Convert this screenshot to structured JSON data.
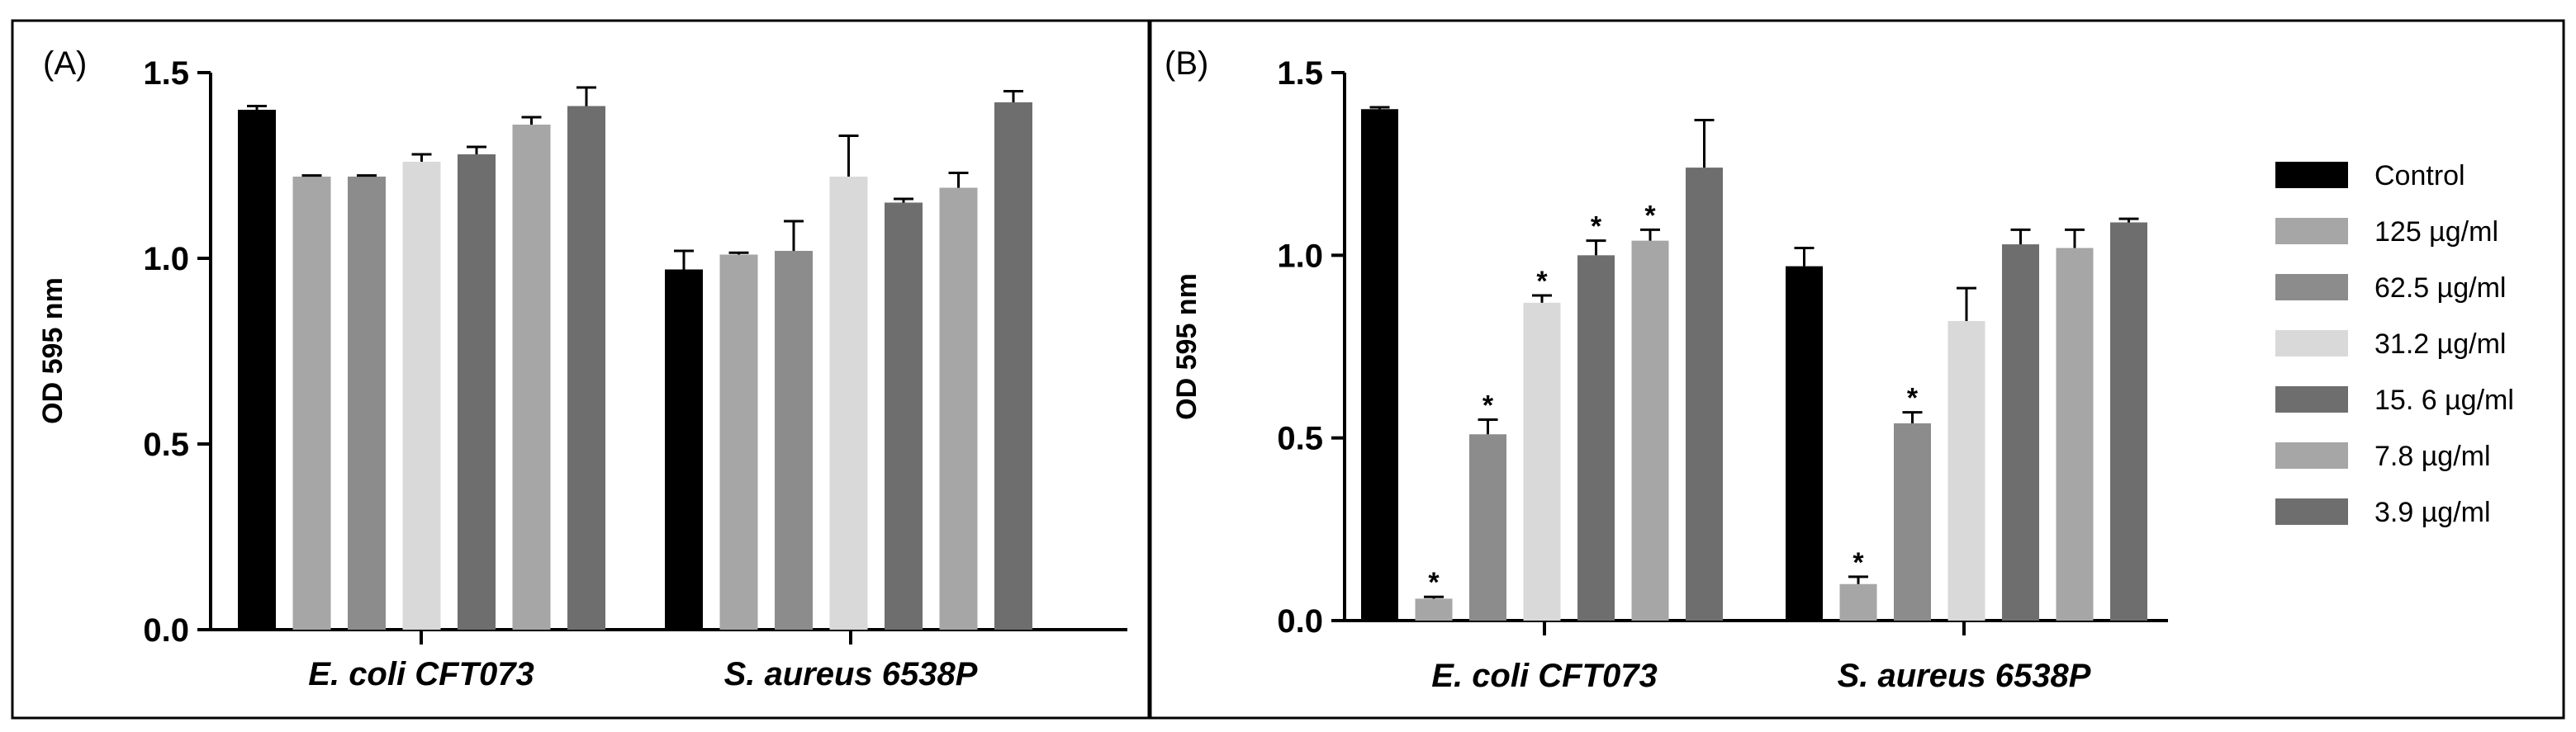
{
  "chart_data": [
    {
      "panel": "(A)",
      "type": "bar",
      "title": "",
      "xlabel": "",
      "ylabel": "OD 595 nm",
      "ylim": [
        0,
        1.5
      ],
      "yticks": [
        "0.0",
        "0.5",
        "1.0",
        "1.5"
      ],
      "categories": [
        "E. coli CFT073",
        "S. aureus 6538P"
      ],
      "series": [
        {
          "name": "Control",
          "color": "#000000",
          "values": [
            1.4,
            0.97
          ],
          "errors": [
            0.01,
            0.05
          ],
          "significant": [
            false,
            false
          ]
        },
        {
          "name": "125 µg/ml",
          "color": "#a6a6a6",
          "values": [
            1.22,
            1.01
          ],
          "errors": [
            0.003,
            0.005
          ],
          "significant": [
            false,
            false
          ]
        },
        {
          "name": "62.5 µg/ml",
          "color": "#8c8c8c",
          "values": [
            1.22,
            1.02
          ],
          "errors": [
            0.003,
            0.08
          ],
          "significant": [
            false,
            false
          ]
        },
        {
          "name": "31.2 µg/ml",
          "color": "#d9d9d9",
          "values": [
            1.26,
            1.22
          ],
          "errors": [
            0.02,
            0.11
          ],
          "significant": [
            false,
            false
          ]
        },
        {
          "name": "15. 6 µg/ml",
          "color": "#6e6e6e",
          "values": [
            1.28,
            1.15
          ],
          "errors": [
            0.02,
            0.01
          ],
          "significant": [
            false,
            false
          ]
        },
        {
          "name": "7.8 µg/ml",
          "color": "#a6a6a6",
          "values": [
            1.36,
            1.19
          ],
          "errors": [
            0.02,
            0.04
          ],
          "significant": [
            false,
            false
          ]
        },
        {
          "name": "3.9 µg/ml",
          "color": "#6e6e6e",
          "values": [
            1.41,
            1.42
          ],
          "errors": [
            0.05,
            0.03
          ],
          "significant": [
            false,
            false
          ]
        }
      ]
    },
    {
      "panel": "(B)",
      "type": "bar",
      "title": "",
      "xlabel": "",
      "ylabel": "OD 595 nm",
      "ylim": [
        0,
        1.5
      ],
      "yticks": [
        "0.0",
        "0.5",
        "1.0",
        "1.5"
      ],
      "categories": [
        "E. coli CFT073",
        "S. aureus 6538P"
      ],
      "legend_position": "right",
      "star_marker": "*",
      "series": [
        {
          "name": "Control",
          "color": "#000000",
          "values": [
            1.4,
            0.97
          ],
          "errors": [
            0.005,
            0.05
          ],
          "significant": [
            false,
            false
          ]
        },
        {
          "name": "125 µg/ml",
          "color": "#a6a6a6",
          "values": [
            0.06,
            0.1
          ],
          "errors": [
            0.005,
            0.02
          ],
          "significant": [
            true,
            true
          ]
        },
        {
          "name": "62.5 µg/ml",
          "color": "#8c8c8c",
          "values": [
            0.51,
            0.54
          ],
          "errors": [
            0.04,
            0.03
          ],
          "significant": [
            true,
            true
          ]
        },
        {
          "name": "31.2 µg/ml",
          "color": "#d9d9d9",
          "values": [
            0.87,
            0.82
          ],
          "errors": [
            0.02,
            0.09
          ],
          "significant": [
            true,
            false
          ]
        },
        {
          "name": "15. 6 µg/ml",
          "color": "#6e6e6e",
          "values": [
            1.0,
            1.03
          ],
          "errors": [
            0.04,
            0.04
          ],
          "significant": [
            true,
            false
          ]
        },
        {
          "name": "7.8 µg/ml",
          "color": "#a6a6a6",
          "values": [
            1.04,
            1.02
          ],
          "errors": [
            0.03,
            0.05
          ],
          "significant": [
            true,
            false
          ]
        },
        {
          "name": "3.9 µg/ml",
          "color": "#6e6e6e",
          "values": [
            1.24,
            1.09
          ],
          "errors": [
            0.13,
            0.01
          ],
          "significant": [
            false,
            false
          ]
        }
      ]
    }
  ]
}
